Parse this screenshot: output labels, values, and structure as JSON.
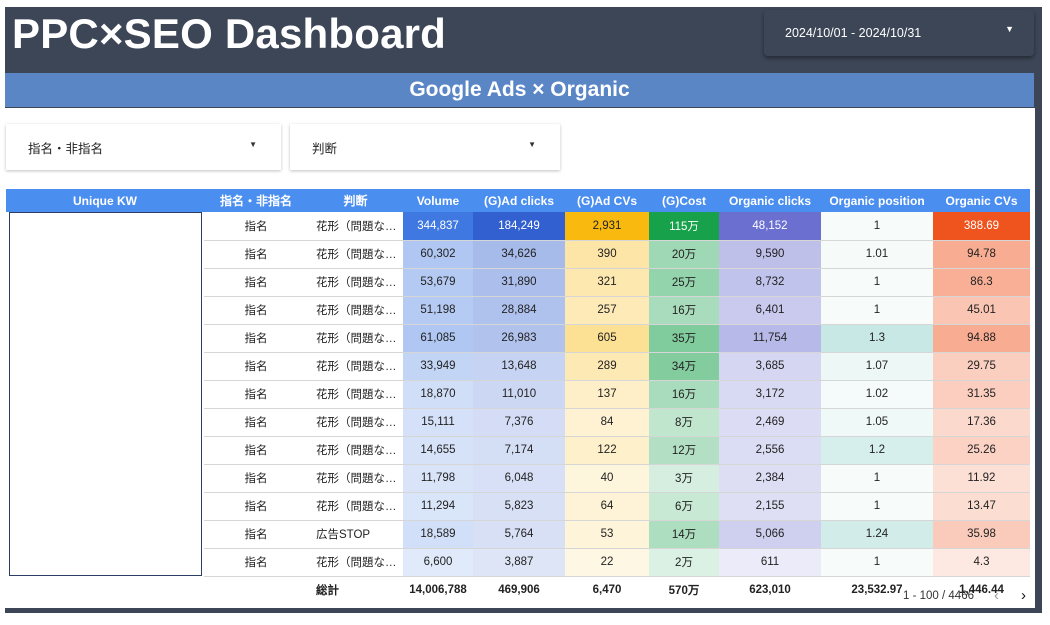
{
  "header": {
    "title": "PPC×SEO Dashboard",
    "date_range": "2024/10/01 - 2024/10/31",
    "banner": "Google Ads × Organic"
  },
  "filters": [
    {
      "label": "指名・非指名"
    },
    {
      "label": "判断"
    }
  ],
  "table": {
    "columns": [
      "Unique KW",
      "指名・非指名",
      "判断",
      "Volume",
      "(G)Ad clicks",
      "(G)Ad CVs",
      "(G)Cost",
      "Organic clicks",
      "Organic position",
      "Organic CVs"
    ],
    "rows": [
      [
        "",
        "指名",
        "花形（問題なし）",
        "344,837",
        "184,249",
        "2,931",
        "115万",
        "48,152",
        "1",
        "388.69"
      ],
      [
        "",
        "指名",
        "花形（問題なし）",
        "60,302",
        "34,626",
        "390",
        "20万",
        "9,590",
        "1.01",
        "94.78"
      ],
      [
        "",
        "指名",
        "花形（問題なし）",
        "53,679",
        "31,890",
        "321",
        "25万",
        "8,732",
        "1",
        "86.3"
      ],
      [
        "",
        "指名",
        "花形（問題なし）",
        "51,198",
        "28,884",
        "257",
        "16万",
        "6,401",
        "1",
        "45.01"
      ],
      [
        "",
        "指名",
        "花形（問題なし）",
        "61,085",
        "26,983",
        "605",
        "35万",
        "11,754",
        "1.3",
        "94.88"
      ],
      [
        "",
        "指名",
        "花形（問題なし）",
        "33,949",
        "13,648",
        "289",
        "34万",
        "3,685",
        "1.07",
        "29.75"
      ],
      [
        "",
        "指名",
        "花形（問題なし）",
        "18,870",
        "11,010",
        "137",
        "16万",
        "3,172",
        "1.02",
        "31.35"
      ],
      [
        "",
        "指名",
        "花形（問題なし）",
        "15,111",
        "7,376",
        "84",
        "8万",
        "2,469",
        "1.05",
        "17.36"
      ],
      [
        "",
        "指名",
        "花形（問題なし）",
        "14,655",
        "7,174",
        "122",
        "12万",
        "2,556",
        "1.2",
        "25.26"
      ],
      [
        "",
        "指名",
        "花形（問題なし）",
        "11,798",
        "6,048",
        "40",
        "3万",
        "2,384",
        "1",
        "11.92"
      ],
      [
        "",
        "指名",
        "花形（問題なし）",
        "11,294",
        "5,823",
        "64",
        "6万",
        "2,155",
        "1",
        "13.47"
      ],
      [
        "",
        "指名",
        "広告STOP",
        "18,589",
        "5,764",
        "53",
        "14万",
        "5,066",
        "1.24",
        "35.98"
      ],
      [
        "",
        "指名",
        "花形（問題なし）",
        "6,600",
        "3,887",
        "22",
        "2万",
        "611",
        "1",
        "4.3"
      ]
    ],
    "totals": {
      "label": "総計",
      "values": [
        "14,006,788",
        "469,906",
        "6,470",
        "570万",
        "623,010",
        "23,532.97",
        "1,446.44"
      ]
    },
    "pagination": "1 - 100 / 4466"
  },
  "colors": {
    "frame": "#3d4657",
    "banner": "#5b86c6",
    "header": "#4a8ef0",
    "heat": {
      "volume": "#3f78e0",
      "ad_clicks": "#3260d0",
      "ad_cvs": "#f9b90e",
      "cost": "#16a14a",
      "organic_clicks": "#6a6fd0",
      "organic_position": "#9fd8d0",
      "organic_cvs": "#f0541e"
    }
  },
  "icons": {
    "dropdown": "caret-down-icon",
    "prev": "chevron-left-icon",
    "next": "chevron-right-icon"
  }
}
